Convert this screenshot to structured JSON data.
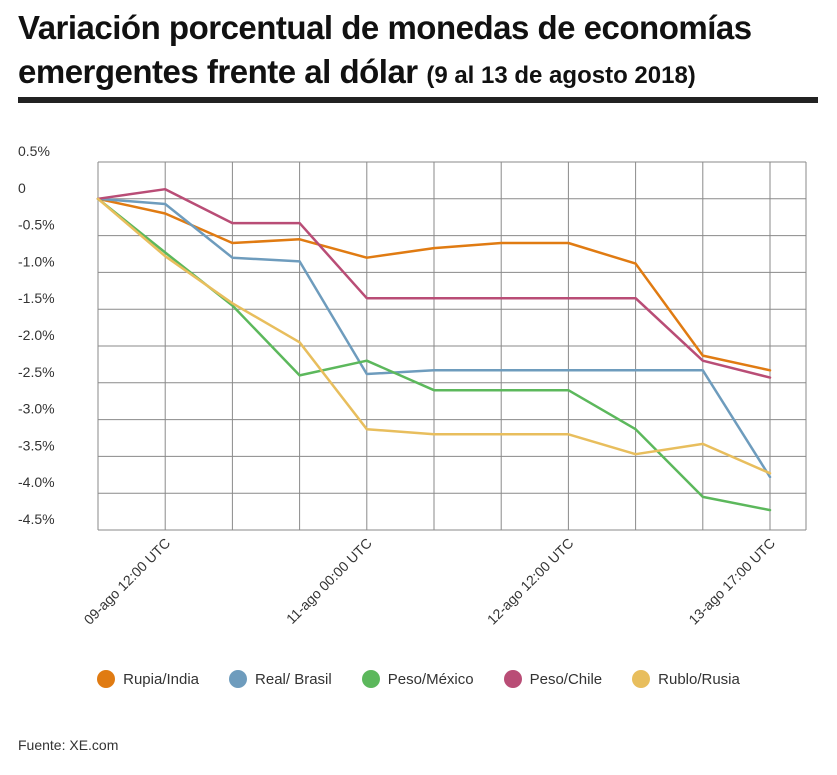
{
  "header": {
    "title_line1": "Variación porcentual de monedas de economías",
    "title_line2": "emergentes frente al dólar",
    "subtitle": "(9 al 13 de agosto 2018)"
  },
  "footer": {
    "source": "Fuente: XE.com"
  },
  "chart_data": {
    "type": "line",
    "title": "Variación porcentual de monedas de economías emergentes frente al dólar",
    "subtitle": "(9 al 13 de agosto 2018)",
    "xlabel": "",
    "ylabel": "",
    "ylim": [
      -4.5,
      0.5
    ],
    "grid": true,
    "legend_position": "bottom",
    "y_ticks": [
      0.5,
      0,
      -0.5,
      -1.0,
      -1.5,
      -2.0,
      -2.5,
      -3.0,
      -3.5,
      -4.0,
      -4.5
    ],
    "y_tick_labels": [
      "0.5%",
      "0",
      "-0.5%",
      "-1.0%",
      "-1.5%",
      "-2.0%",
      "-2.5%",
      "-3.0%",
      "-3.5%",
      "-4.0%",
      "-4.5%"
    ],
    "x_tick_labels": [
      {
        "index": 1,
        "label": "09-ago 12:00 UTC"
      },
      {
        "index": 4,
        "label": "11-ago 00:00 UTC"
      },
      {
        "index": 7,
        "label": "12-ago 12:00 UTC"
      },
      {
        "index": 10,
        "label": "13-ago 17:00 UTC"
      }
    ],
    "n_points": 11,
    "series": [
      {
        "name": "Rupia/India",
        "color": "#e07b12",
        "values": [
          0,
          -0.2,
          -0.6,
          -0.55,
          -0.8,
          -0.67,
          -0.6,
          -0.6,
          -0.88,
          -2.13,
          -2.33
        ]
      },
      {
        "name": "Real/ Brasil",
        "color": "#6e9cbd",
        "values": [
          0,
          -0.07,
          -0.8,
          -0.85,
          -2.38,
          -2.33,
          -2.33,
          -2.33,
          -2.33,
          -2.33,
          -3.78
        ]
      },
      {
        "name": "Peso/México",
        "color": "#5cb85c",
        "values": [
          0,
          -0.73,
          -1.45,
          -2.4,
          -2.2,
          -2.6,
          -2.6,
          -2.6,
          -3.13,
          -4.05,
          -4.23
        ]
      },
      {
        "name": "Peso/Chile",
        "color": "#b94d76",
        "values": [
          0,
          0.13,
          -0.33,
          -0.33,
          -1.35,
          -1.35,
          -1.35,
          -1.35,
          -1.35,
          -2.2,
          -2.43
        ]
      },
      {
        "name": "Rublo/Rusia",
        "color": "#e8be5d",
        "values": [
          0,
          -0.78,
          -1.42,
          -1.95,
          -3.13,
          -3.2,
          -3.2,
          -3.2,
          -3.47,
          -3.33,
          -3.73
        ]
      }
    ]
  }
}
